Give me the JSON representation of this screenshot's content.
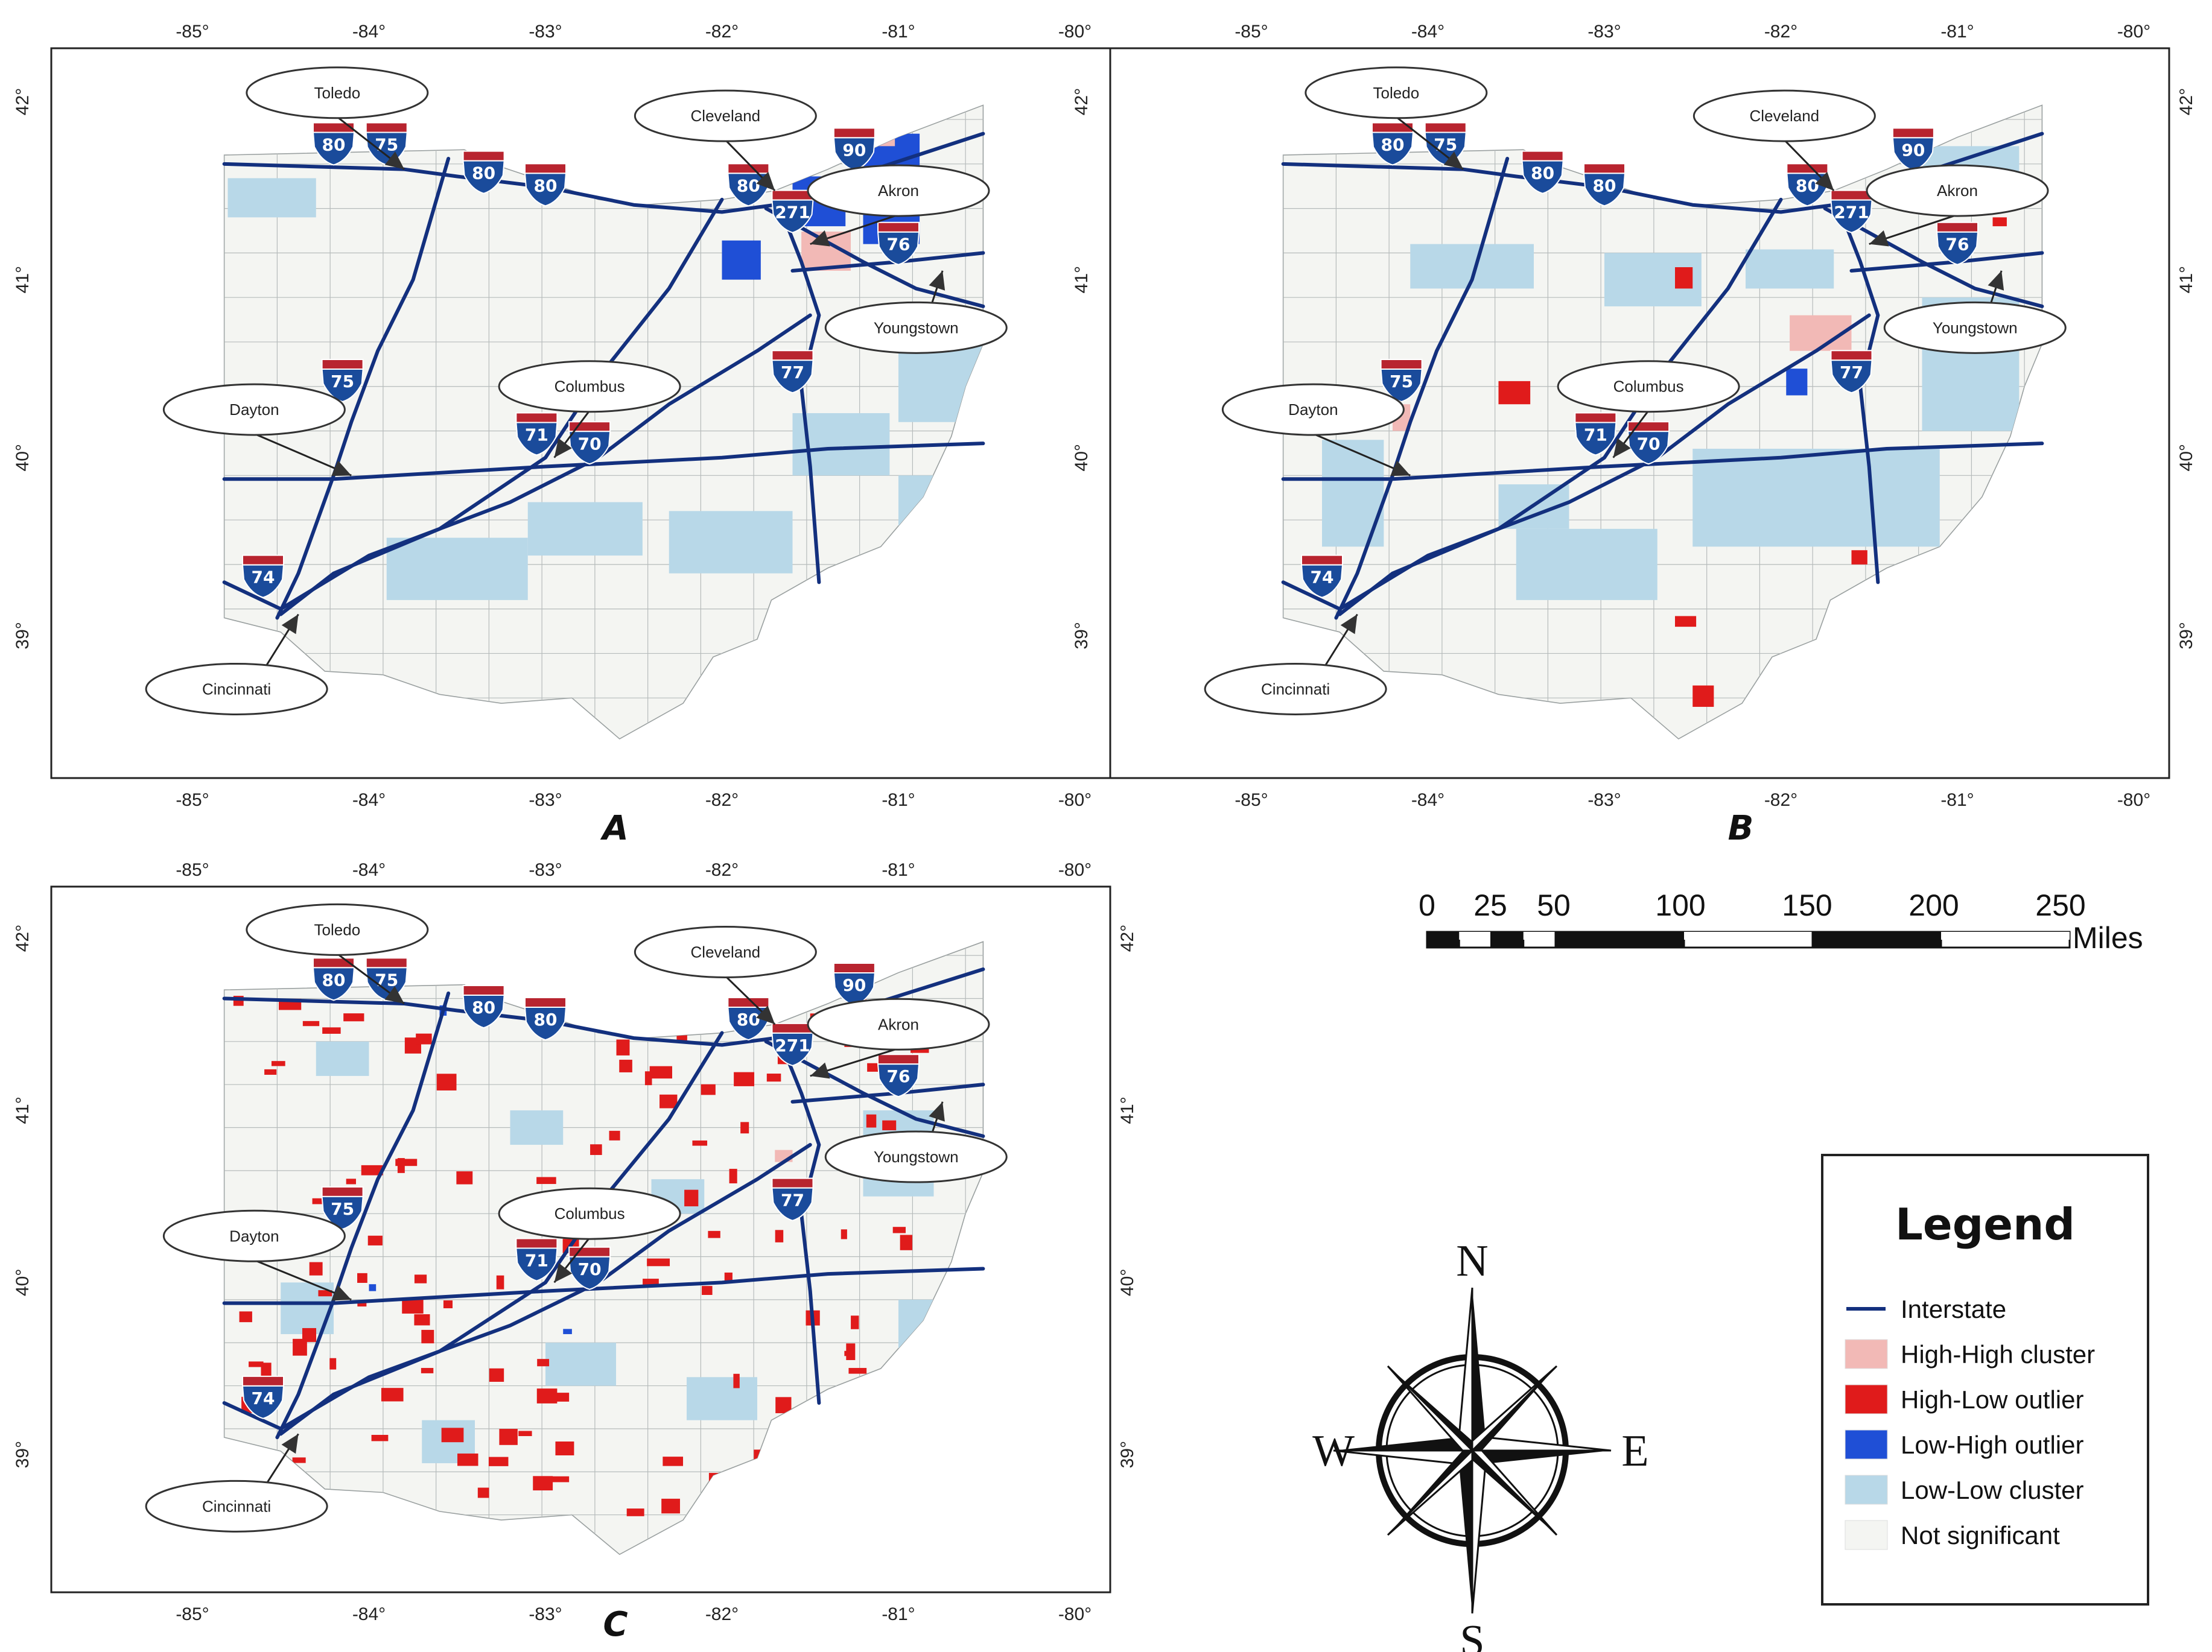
{
  "panels": [
    {
      "id": "A",
      "label": "A",
      "lon_labels": [
        "-85°",
        "-84°",
        "-83°",
        "-82°",
        "-81°",
        "-80°"
      ],
      "lat_labels": [
        "42°",
        "41°",
        "40°",
        "39°"
      ],
      "patches": [
        {
          "cls": "low_high",
          "lon": -82.0,
          "lat": 41.0,
          "w": 0.22,
          "h": 0.22
        },
        {
          "cls": "low_high",
          "lon": -81.6,
          "lat": 41.3,
          "w": 0.3,
          "h": 0.28
        },
        {
          "cls": "low_high",
          "lon": -81.2,
          "lat": 41.2,
          "w": 0.32,
          "h": 0.62
        },
        {
          "cls": "high_high",
          "lon": -81.55,
          "lat": 41.05,
          "w": 0.28,
          "h": 0.22
        },
        {
          "cls": "high_high",
          "lon": -81.2,
          "lat": 41.75,
          "w": 0.18,
          "h": 0.12
        },
        {
          "cls": "low_low",
          "lon": -84.8,
          "lat": 41.35,
          "w": 0.5,
          "h": 0.22
        },
        {
          "cls": "low_low",
          "lon": -83.9,
          "lat": 39.2,
          "w": 0.8,
          "h": 0.35
        },
        {
          "cls": "low_low",
          "lon": -83.1,
          "lat": 39.45,
          "w": 0.65,
          "h": 0.3
        },
        {
          "cls": "low_low",
          "lon": -82.3,
          "lat": 39.35,
          "w": 0.7,
          "h": 0.35
        },
        {
          "cls": "low_low",
          "lon": -81.6,
          "lat": 39.9,
          "w": 0.55,
          "h": 0.35
        },
        {
          "cls": "low_low",
          "lon": -81.0,
          "lat": 40.2,
          "w": 0.5,
          "h": 0.6
        },
        {
          "cls": "low_low",
          "lon": -81.0,
          "lat": 39.6,
          "w": 0.3,
          "h": 0.3
        }
      ]
    },
    {
      "id": "B",
      "label": "B",
      "lon_labels": [
        "-85°",
        "-84°",
        "-83°",
        "-82°",
        "-81°",
        "-80°"
      ],
      "lat_labels": [
        "42°",
        "41°",
        "40°",
        "39°"
      ],
      "patches": [
        {
          "cls": "low_low",
          "lon": -84.1,
          "lat": 40.95,
          "w": 0.7,
          "h": 0.25
        },
        {
          "cls": "low_low",
          "lon": -83.0,
          "lat": 40.85,
          "w": 0.55,
          "h": 0.3
        },
        {
          "cls": "low_low",
          "lon": -82.2,
          "lat": 40.95,
          "w": 0.5,
          "h": 0.22
        },
        {
          "cls": "low_low",
          "lon": -81.2,
          "lat": 41.45,
          "w": 0.55,
          "h": 0.3
        },
        {
          "cls": "low_low",
          "lon": -81.2,
          "lat": 40.15,
          "w": 0.55,
          "h": 0.75
        },
        {
          "cls": "low_low",
          "lon": -82.5,
          "lat": 39.5,
          "w": 1.4,
          "h": 0.55
        },
        {
          "cls": "low_low",
          "lon": -83.5,
          "lat": 39.2,
          "w": 0.8,
          "h": 0.4
        },
        {
          "cls": "low_low",
          "lon": -84.6,
          "lat": 39.5,
          "w": 0.35,
          "h": 0.6
        },
        {
          "cls": "low_low",
          "lon": -83.6,
          "lat": 39.6,
          "w": 0.4,
          "h": 0.25
        },
        {
          "cls": "high_high",
          "lon": -81.95,
          "lat": 40.6,
          "w": 0.35,
          "h": 0.2
        },
        {
          "cls": "high_high",
          "lon": -84.2,
          "lat": 40.15,
          "w": 0.1,
          "h": 0.15
        },
        {
          "cls": "low_high",
          "lon": -81.97,
          "lat": 40.35,
          "w": 0.12,
          "h": 0.15
        },
        {
          "cls": "high_low",
          "lon": -82.6,
          "lat": 40.95,
          "w": 0.1,
          "h": 0.12
        },
        {
          "cls": "high_low",
          "lon": -83.6,
          "lat": 40.3,
          "w": 0.18,
          "h": 0.13
        },
        {
          "cls": "high_low",
          "lon": -84.8,
          "lat": 40.22,
          "w": 0.08,
          "h": 0.15
        },
        {
          "cls": "high_low",
          "lon": -81.05,
          "lat": 41.5,
          "w": 0.07,
          "h": 0.07
        },
        {
          "cls": "high_low",
          "lon": -80.8,
          "lat": 41.3,
          "w": 0.08,
          "h": 0.05
        },
        {
          "cls": "high_low",
          "lon": -82.5,
          "lat": 38.6,
          "w": 0.12,
          "h": 0.12
        },
        {
          "cls": "high_low",
          "lon": -81.6,
          "lat": 39.4,
          "w": 0.09,
          "h": 0.08
        },
        {
          "cls": "high_low",
          "lon": -82.6,
          "lat": 39.05,
          "w": 0.12,
          "h": 0.06
        }
      ]
    },
    {
      "id": "C",
      "label": "C",
      "lon_labels": [
        "-85°",
        "-84°",
        "-83°",
        "-82°",
        "-81°",
        "-80°"
      ],
      "lat_labels": [
        "42°",
        "41°",
        "40°",
        "39°"
      ],
      "patches": [
        {
          "cls": "low_low",
          "lon": -84.3,
          "lat": 41.2,
          "w": 0.3,
          "h": 0.2
        },
        {
          "cls": "low_low",
          "lon": -83.2,
          "lat": 40.8,
          "w": 0.3,
          "h": 0.2
        },
        {
          "cls": "low_low",
          "lon": -82.4,
          "lat": 40.4,
          "w": 0.3,
          "h": 0.2
        },
        {
          "cls": "low_low",
          "lon": -84.5,
          "lat": 39.7,
          "w": 0.3,
          "h": 0.3
        },
        {
          "cls": "low_low",
          "lon": -83.0,
          "lat": 39.4,
          "w": 0.4,
          "h": 0.25
        },
        {
          "cls": "low_low",
          "lon": -82.2,
          "lat": 39.2,
          "w": 0.4,
          "h": 0.25
        },
        {
          "cls": "low_low",
          "lon": -81.2,
          "lat": 40.5,
          "w": 0.4,
          "h": 0.5
        },
        {
          "cls": "low_low",
          "lon": -81.0,
          "lat": 39.6,
          "w": 0.3,
          "h": 0.3
        },
        {
          "cls": "low_low",
          "lon": -83.7,
          "lat": 38.95,
          "w": 0.3,
          "h": 0.25
        },
        {
          "cls": "high_high",
          "lon": -81.7,
          "lat": 40.7,
          "w": 0.1,
          "h": 0.07
        },
        {
          "cls": "low_high",
          "lon": -83.6,
          "lat": 41.55,
          "w": 0.04,
          "h": 0.06
        },
        {
          "cls": "low_high",
          "lon": -84.0,
          "lat": 39.95,
          "w": 0.04,
          "h": 0.04
        },
        {
          "cls": "low_high",
          "lon": -82.9,
          "lat": 39.7,
          "w": 0.05,
          "h": 0.03
        }
      ],
      "scatter": {
        "count": 120,
        "seed": 7
      }
    }
  ],
  "cities": [
    {
      "name": "Toledo",
      "lon": -83.8,
      "lat": 41.62,
      "box_lon": -84.18,
      "box_lat": 42.05
    },
    {
      "name": "Cleveland",
      "lon": -81.7,
      "lat": 41.5,
      "box_lon": -81.98,
      "box_lat": 41.92
    },
    {
      "name": "Akron",
      "lon": -81.5,
      "lat": 41.2,
      "box_lon": -81.0,
      "box_lat": 41.5
    },
    {
      "name": "Youngstown",
      "lon": -80.75,
      "lat": 41.05,
      "box_lon": -80.9,
      "box_lat": 40.73
    },
    {
      "name": "Columbus",
      "lon": -82.95,
      "lat": 40.0,
      "box_lon": -82.75,
      "box_lat": 40.4
    },
    {
      "name": "Dayton",
      "lon": -84.1,
      "lat": 39.9,
      "box_lon": -84.65,
      "box_lat": 40.27
    },
    {
      "name": "Cincinnati",
      "lon": -84.4,
      "lat": 39.12,
      "box_lon": -84.75,
      "box_lat": 38.7
    }
  ],
  "shields": [
    {
      "num": "80",
      "lon": -84.2,
      "lat": 41.78
    },
    {
      "num": "75",
      "lon": -83.9,
      "lat": 41.78
    },
    {
      "num": "80",
      "lon": -83.35,
      "lat": 41.62
    },
    {
      "num": "80",
      "lon": -83.0,
      "lat": 41.55
    },
    {
      "num": "80",
      "lon": -81.85,
      "lat": 41.55
    },
    {
      "num": "271",
      "lon": -81.6,
      "lat": 41.4
    },
    {
      "num": "90",
      "lon": -81.25,
      "lat": 41.75
    },
    {
      "num": "76",
      "lon": -81.0,
      "lat": 41.22
    },
    {
      "num": "75",
      "lon": -84.15,
      "lat": 40.45
    },
    {
      "num": "77",
      "lon": -81.6,
      "lat": 40.5
    },
    {
      "num": "71",
      "lon": -83.05,
      "lat": 40.15
    },
    {
      "num": "70",
      "lon": -82.75,
      "lat": 40.1
    },
    {
      "num": "74",
      "lon": -84.6,
      "lat": 39.35
    }
  ],
  "scale_bar": {
    "labels": [
      "0",
      "25",
      "50",
      "100",
      "150",
      "200",
      "250"
    ],
    "values": [
      0,
      25,
      50,
      100,
      150,
      200,
      250
    ],
    "unit": "Miles"
  },
  "compass": {
    "n": "N",
    "s": "S",
    "e": "E",
    "w": "W"
  },
  "legend": {
    "title": "Legend",
    "items": [
      {
        "label": "Interstate",
        "kind": "line",
        "color": "#13307e"
      },
      {
        "label": "High-High cluster",
        "kind": "box",
        "color": "#f2b9b6"
      },
      {
        "label": "High-Low outlier",
        "kind": "box",
        "color": "#e01b1b"
      },
      {
        "label": "Low-High outlier",
        "kind": "box",
        "color": "#1f4fd6"
      },
      {
        "label": "Low-Low cluster",
        "kind": "box",
        "color": "#b8d8e8"
      },
      {
        "label": "Not significant",
        "kind": "box",
        "color": "#f4f5f2"
      }
    ]
  },
  "colors": {
    "high_high": "#f2b9b6",
    "high_low": "#e01b1b",
    "low_high": "#1f4fd6",
    "low_low": "#b8d8e8",
    "not_significant": "#f4f5f2",
    "interstate": "#13307e",
    "shield_red": "#b8242f",
    "shield_blue": "#1a4b9b"
  }
}
